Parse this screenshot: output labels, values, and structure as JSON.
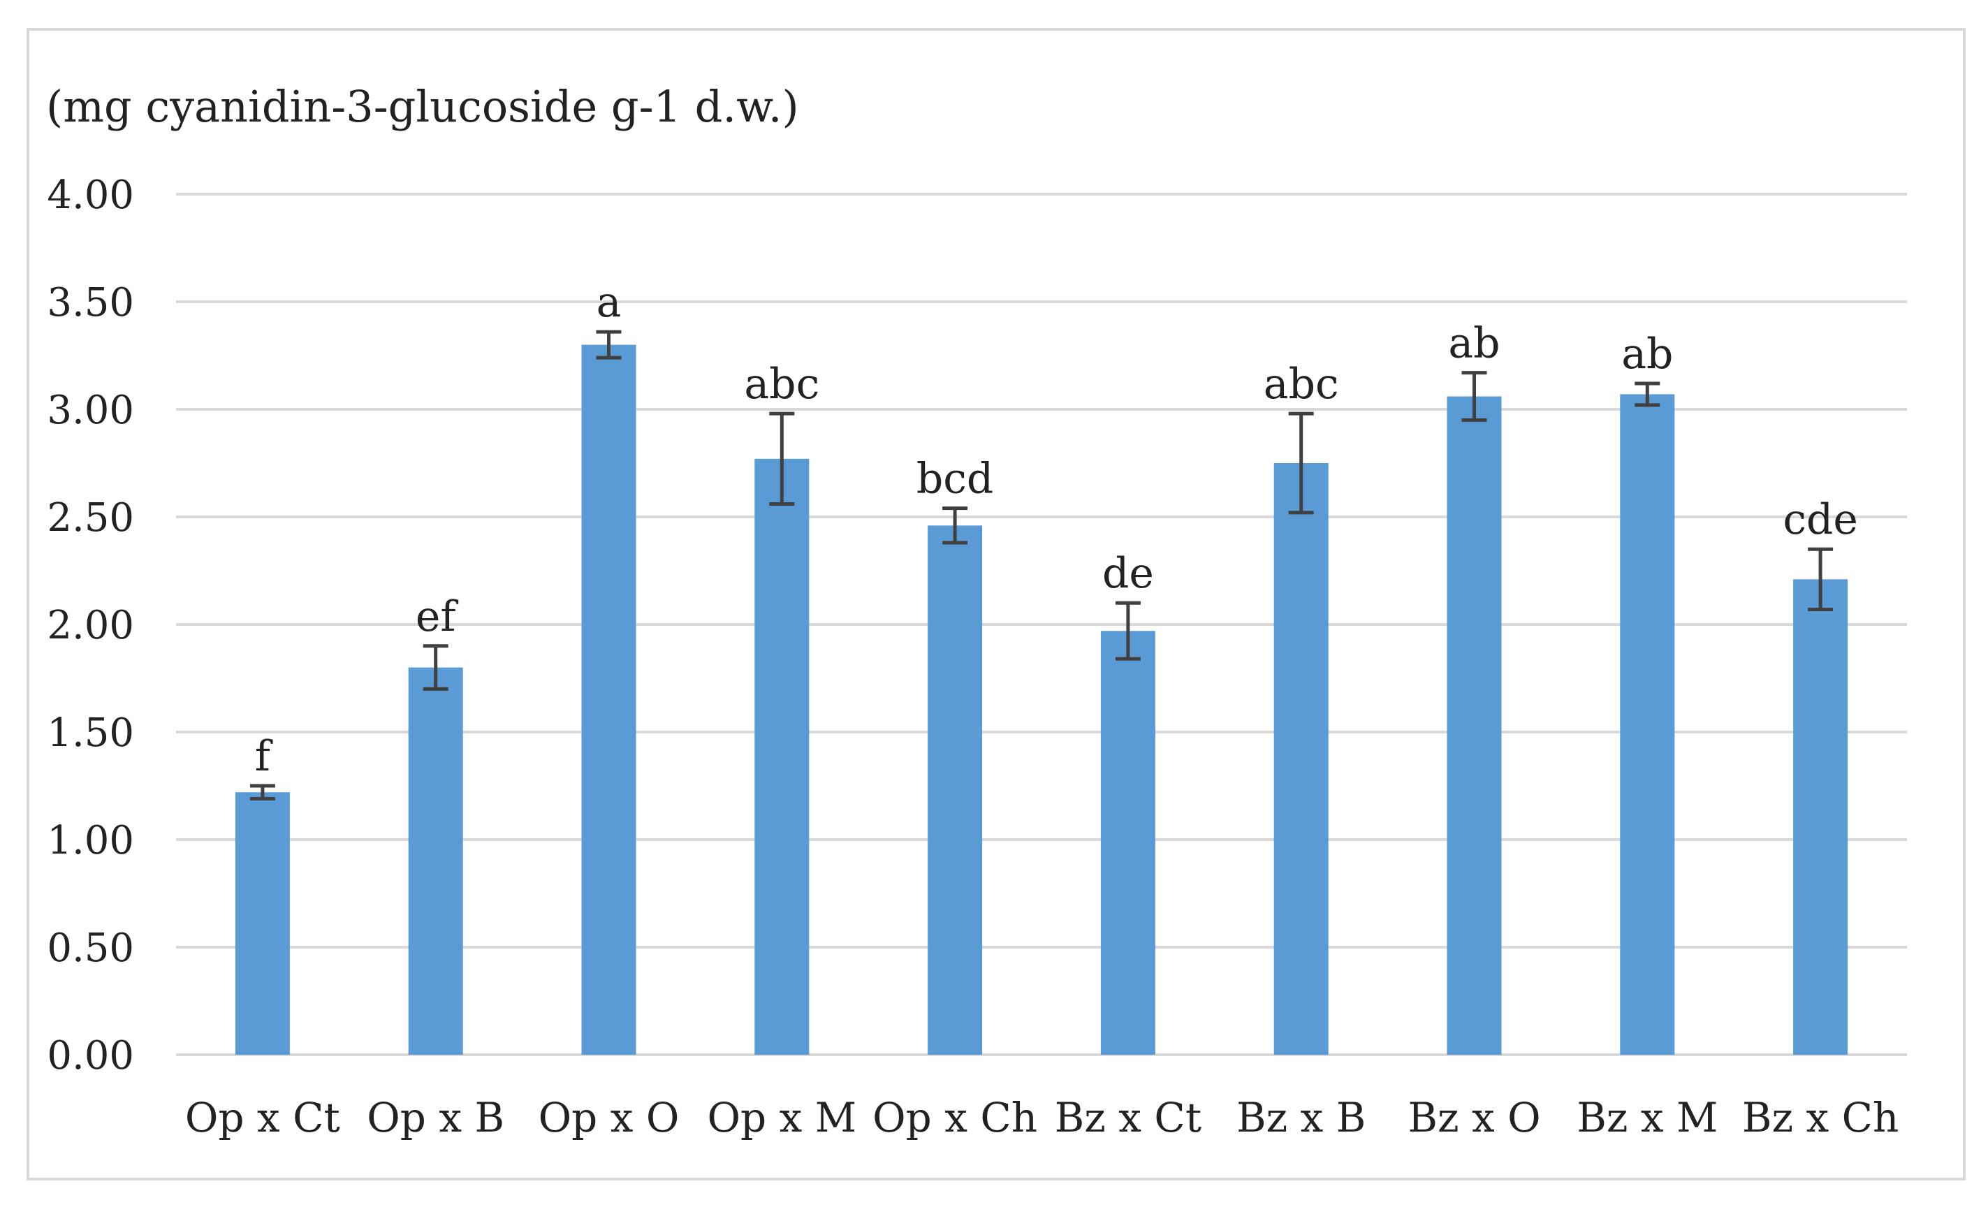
{
  "chart_data": {
    "type": "bar",
    "title": "",
    "ylabel": "(mg cyanidin-3-glucoside  g-1 d.w.)",
    "xlabel": "",
    "categories": [
      "Op x Ct",
      "Op x B",
      "Op x O",
      "Op x M",
      "Op x Ch",
      "Bz x Ct",
      "Bz x B",
      "Bz x O",
      "Bz x M",
      "Bz x Ch"
    ],
    "series": [
      {
        "values": [
          1.22,
          1.8,
          3.3,
          2.77,
          2.46,
          1.97,
          2.75,
          3.06,
          3.07,
          2.21
        ],
        "errors": [
          0.03,
          0.1,
          0.06,
          0.21,
          0.08,
          0.13,
          0.23,
          0.11,
          0.05,
          0.14
        ],
        "labels": [
          "f",
          "ef",
          "a",
          "abc",
          "bcd",
          "de",
          "abc",
          "ab",
          "ab",
          "cde"
        ]
      }
    ],
    "ylim": [
      0,
      4
    ],
    "yticks": [
      "0.00",
      "0.50",
      "1.00",
      "1.50",
      "2.00",
      "2.50",
      "3.00",
      "3.50",
      "4.00"
    ],
    "grid": true,
    "colors": {
      "bar": "#5b9bd5",
      "grid": "#d9d9d9",
      "error": "#404040"
    }
  }
}
